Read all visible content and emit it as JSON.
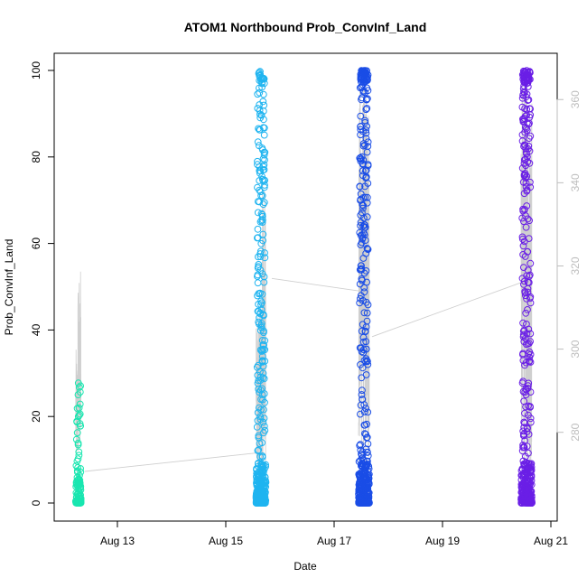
{
  "chart_data": {
    "type": "scatter",
    "title": "ATOM1 Northbound Prob_ConvInf_Land",
    "xlabel": "Date",
    "ylabel": "Prob_ConvInf_Land",
    "x_ticks": [
      "Aug 13",
      "Aug 15",
      "Aug 17",
      "Aug 19",
      "Aug 21"
    ],
    "ylim": [
      0,
      100
    ],
    "y_ticks": [
      0,
      20,
      40,
      60,
      80,
      100
    ],
    "y2lim": [
      263,
      367
    ],
    "y2_ticks": [
      280,
      300,
      320,
      340,
      360
    ],
    "grid": false,
    "clusters": [
      {
        "day_center": 12.28,
        "day_span": 0.1,
        "color": "#19e6b0",
        "ymax": 28,
        "dense_max": 12
      },
      {
        "day_center": 15.65,
        "day_span": 0.18,
        "color": "#1fb4f0",
        "ymax": 100,
        "dense_max": 100
      },
      {
        "day_center": 17.55,
        "day_span": 0.2,
        "color": "#1a4de6",
        "ymax": 100,
        "dense_max": 100
      },
      {
        "day_center": 20.55,
        "day_span": 0.2,
        "color": "#6a1fe6",
        "ymax": 100,
        "dense_max": 100
      }
    ],
    "line_series": {
      "color": "#cfcfcf",
      "connectors": [
        {
          "from": [
            12.4,
            270.6
          ],
          "to": [
            15.55,
            275.0
          ]
        },
        {
          "from": [
            15.85,
            317.0
          ],
          "to": [
            17.45,
            314.0
          ]
        },
        {
          "from": [
            17.7,
            303.0
          ],
          "to": [
            20.45,
            316.0
          ]
        }
      ]
    }
  }
}
